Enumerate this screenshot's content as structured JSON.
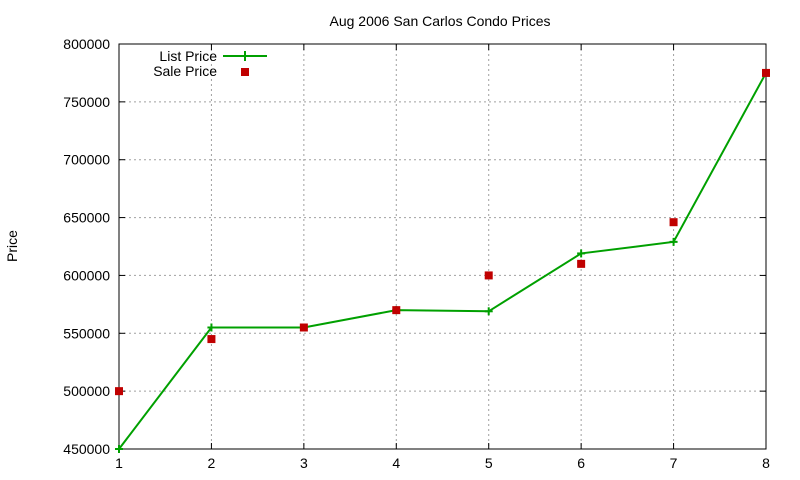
{
  "chart_data": {
    "type": "line",
    "title": "Aug 2006 San Carlos Condo Prices",
    "xlabel": "",
    "ylabel": "Price",
    "x": [
      1,
      2,
      3,
      4,
      5,
      6,
      7,
      8
    ],
    "xticks": [
      "1",
      "2",
      "3",
      "4",
      "5",
      "6",
      "7",
      "8"
    ],
    "xlim": [
      1,
      8
    ],
    "ylim": [
      450000,
      800000
    ],
    "yticks": [
      "450000",
      "500000",
      "550000",
      "600000",
      "650000",
      "700000",
      "750000",
      "800000"
    ],
    "grid": true,
    "legend_position": "top-left",
    "series": [
      {
        "name": "List Price",
        "style": "line-with-plus-markers",
        "color": "#00a000",
        "values": [
          450000,
          555000,
          555000,
          570000,
          569000,
          619000,
          629000,
          775000
        ]
      },
      {
        "name": "Sale Price",
        "style": "square-markers",
        "color": "#c00000",
        "values": [
          500000,
          545000,
          555000,
          570000,
          600000,
          610000,
          646000,
          775000
        ]
      }
    ]
  }
}
